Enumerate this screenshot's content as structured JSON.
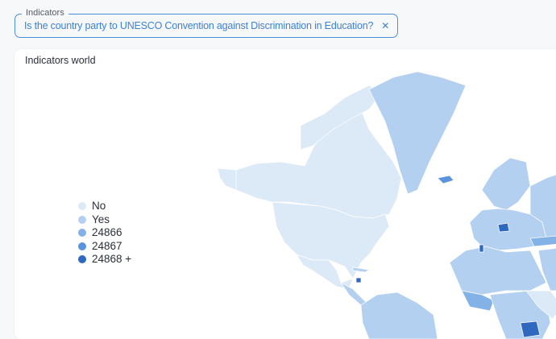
{
  "filter": {
    "label": "Indicators",
    "selected": "Is the country party to UNESCO Convention against Discrimination in Education?",
    "remove_icon": "close-icon"
  },
  "card": {
    "title": "Indicators world"
  },
  "legend": [
    {
      "label": "No",
      "color": "#dce9f7"
    },
    {
      "label": "Yes",
      "color": "#b3d0f1"
    },
    {
      "label": "24866",
      "color": "#83b2e7"
    },
    {
      "label": "24867",
      "color": "#5994dc"
    },
    {
      "label": "24868 +",
      "color": "#2e69bf"
    }
  ]
}
